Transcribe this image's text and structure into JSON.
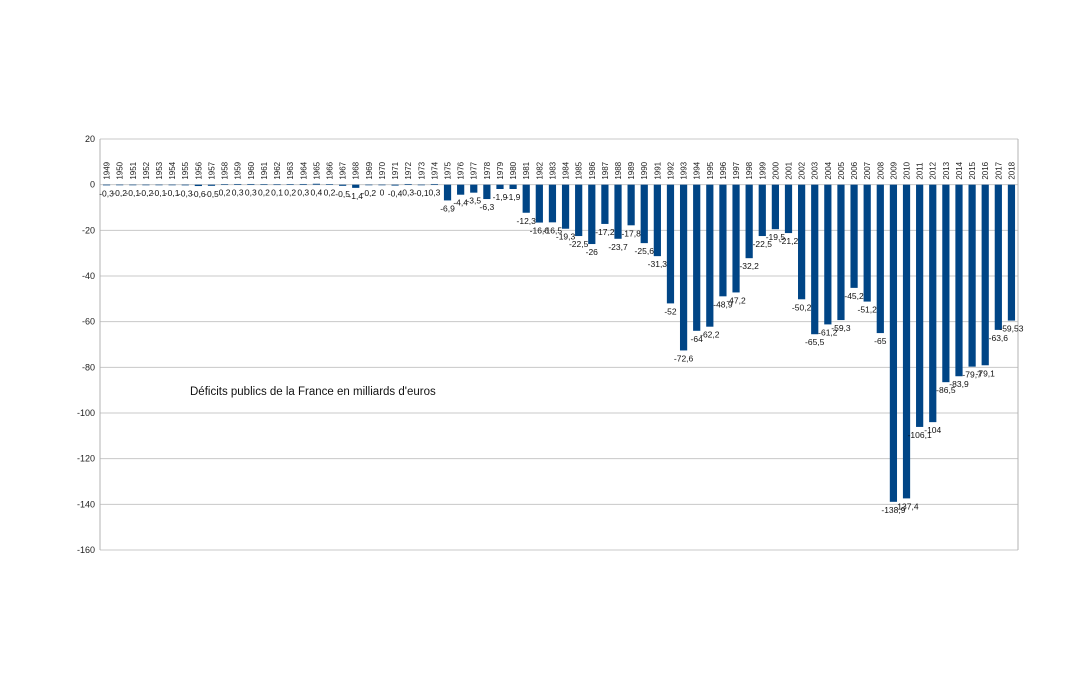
{
  "chart_data": {
    "type": "bar",
    "title": "",
    "annotation": "Déficits publics de la France en milliards d'euros",
    "xlabel": "",
    "ylabel": "",
    "ylim": [
      -160,
      20
    ],
    "yticks": [
      20,
      0,
      -20,
      -40,
      -60,
      -80,
      -100,
      -120,
      -140,
      -160
    ],
    "grid": true,
    "bar_color": "#004586",
    "categories": [
      "1949",
      "1950",
      "1951",
      "1952",
      "1953",
      "1954",
      "1955",
      "1956",
      "1957",
      "1958",
      "1959",
      "1960",
      "1961",
      "1962",
      "1963",
      "1964",
      "1965",
      "1966",
      "1967",
      "1968",
      "1969",
      "1970",
      "1971",
      "1972",
      "1973",
      "1974",
      "1975",
      "1976",
      "1977",
      "1978",
      "1979",
      "1980",
      "1981",
      "1982",
      "1983",
      "1984",
      "1985",
      "1986",
      "1987",
      "1988",
      "1989",
      "1990",
      "1991",
      "1992",
      "1993",
      "1994",
      "1995",
      "1996",
      "1997",
      "1998",
      "1999",
      "2000",
      "2001",
      "2002",
      "2003",
      "2004",
      "2005",
      "2006",
      "2007",
      "2008",
      "2009",
      "2010",
      "2011",
      "2012",
      "2013",
      "2014",
      "2015",
      "2016",
      "2017",
      "2018"
    ],
    "values": [
      -0.3,
      -0.2,
      -0.1,
      -0.2,
      -0.1,
      -0.1,
      -0.3,
      -0.6,
      -0.5,
      0.2,
      0.3,
      0.3,
      0.2,
      0.1,
      0.2,
      0.3,
      0.4,
      0.2,
      -0.5,
      -1.4,
      -0.2,
      0,
      -0.4,
      0.3,
      -0.1,
      0.3,
      -6.9,
      -4.4,
      -3.5,
      -6.3,
      -1.9,
      -1.9,
      -12.3,
      -16.6,
      -16.5,
      -19.3,
      -22.5,
      -26,
      -17.2,
      -23.7,
      -17.8,
      -25.6,
      -31.3,
      -52,
      -72.6,
      -64,
      -62.2,
      -48.9,
      -47.2,
      -32.2,
      -22.5,
      -19.5,
      -21.2,
      -50.2,
      -65.5,
      -61.2,
      -59.3,
      -45.2,
      -51.2,
      -65,
      -138.9,
      -137.4,
      -106.1,
      -104,
      -86.5,
      -83.9,
      -79.7,
      -79.1,
      -63.6,
      -59.53
    ],
    "data_labels": [
      "-0,3",
      "-0,2",
      "-0,1",
      "-0,2",
      "-0,1",
      "-0,1",
      "-0,3",
      "-0,6",
      "-0,5",
      "0,2",
      "0,3",
      "0,3",
      "0,2",
      "0,1",
      "0,2",
      "0,3",
      "0,4",
      "0,2",
      "-0,5",
      "-1,4",
      "-0,2",
      "0",
      "-0,4",
      "0,3",
      "-0,1",
      "0,3",
      "-6,9",
      "-4,4",
      "-3,5",
      "-6,3",
      "-1,9",
      "-1,9",
      "-12,3",
      "-16,6",
      "-16,5",
      "-19,3",
      "-22,5",
      "-26",
      "-17,2",
      "-23,7",
      "-17,8",
      "-25,6",
      "-31,3",
      "-52",
      "-72,6",
      "-64",
      "-62,2",
      "-48,9",
      "-47,2",
      "-32,2",
      "-22,5",
      "-19,5",
      "-21,2",
      "-50,2",
      "-65,5",
      "-61,2",
      "-59,3",
      "-45,2",
      "-51,2",
      "-65",
      "-138,9",
      "-137,4",
      "-106,1",
      "-104",
      "-86,5",
      "-83,9",
      "-79,7",
      "-79,1",
      "-63,6",
      "-59,53"
    ]
  }
}
